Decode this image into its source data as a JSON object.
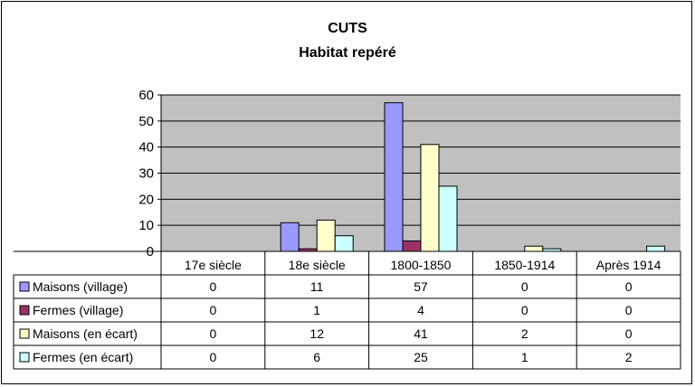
{
  "chart_data": {
    "type": "bar",
    "title": "CUTS",
    "subtitle": "Habitat repéré",
    "categories": [
      "17e siècle",
      "18e siècle",
      "1800-1850",
      "1850-1914",
      "Après 1914"
    ],
    "series": [
      {
        "name": "Maisons (village)",
        "color": "#9999ff",
        "values": [
          0,
          11,
          57,
          0,
          0
        ]
      },
      {
        "name": "Fermes (village)",
        "color": "#993366",
        "values": [
          0,
          1,
          4,
          0,
          0
        ]
      },
      {
        "name": "Maisons (en écart)",
        "color": "#ffffcc",
        "values": [
          0,
          12,
          41,
          2,
          0
        ]
      },
      {
        "name": "Fermes (en écart)",
        "color": "#ccffff",
        "values": [
          0,
          6,
          25,
          1,
          2
        ]
      }
    ],
    "ylim": [
      0,
      60
    ],
    "yticks": [
      0,
      10,
      20,
      30,
      40,
      50,
      60
    ],
    "grid": true,
    "plot_background": "#c0c0c0",
    "legend": "data-table"
  }
}
